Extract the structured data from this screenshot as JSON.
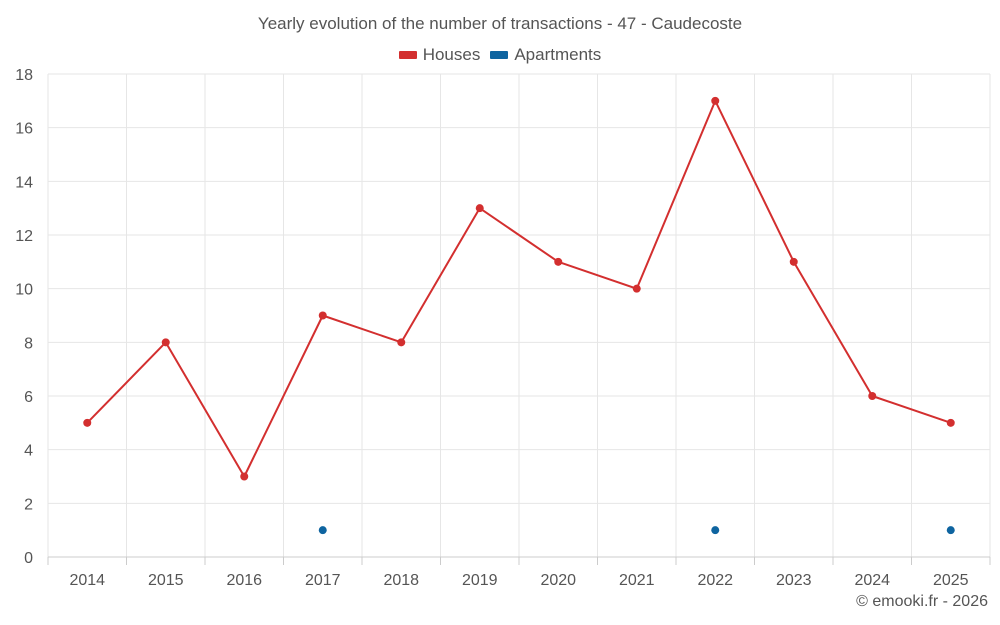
{
  "chart_data": {
    "type": "line",
    "title": "Yearly evolution of the number of transactions - 47 - Caudecoste",
    "categories": [
      "2014",
      "2015",
      "2016",
      "2017",
      "2018",
      "2019",
      "2020",
      "2021",
      "2022",
      "2023",
      "2024",
      "2025"
    ],
    "series": [
      {
        "name": "Houses",
        "color": "#d32f2f",
        "line": true,
        "values": [
          5,
          8,
          3,
          9,
          8,
          13,
          11,
          10,
          17,
          11,
          6,
          5
        ]
      },
      {
        "name": "Apartments",
        "color": "#0e64a0",
        "line": false,
        "values": [
          null,
          null,
          null,
          1,
          null,
          null,
          null,
          null,
          1,
          null,
          null,
          1
        ]
      }
    ],
    "ylim": [
      0,
      18
    ],
    "yticks": [
      0,
      2,
      4,
      6,
      8,
      10,
      12,
      14,
      16,
      18
    ],
    "xlabel": "",
    "ylabel": "",
    "grid": true,
    "legend": "top-center"
  },
  "legend": {
    "houses": "Houses",
    "apartments": "Apartments"
  },
  "credit": "© emooki.fr - 2026"
}
